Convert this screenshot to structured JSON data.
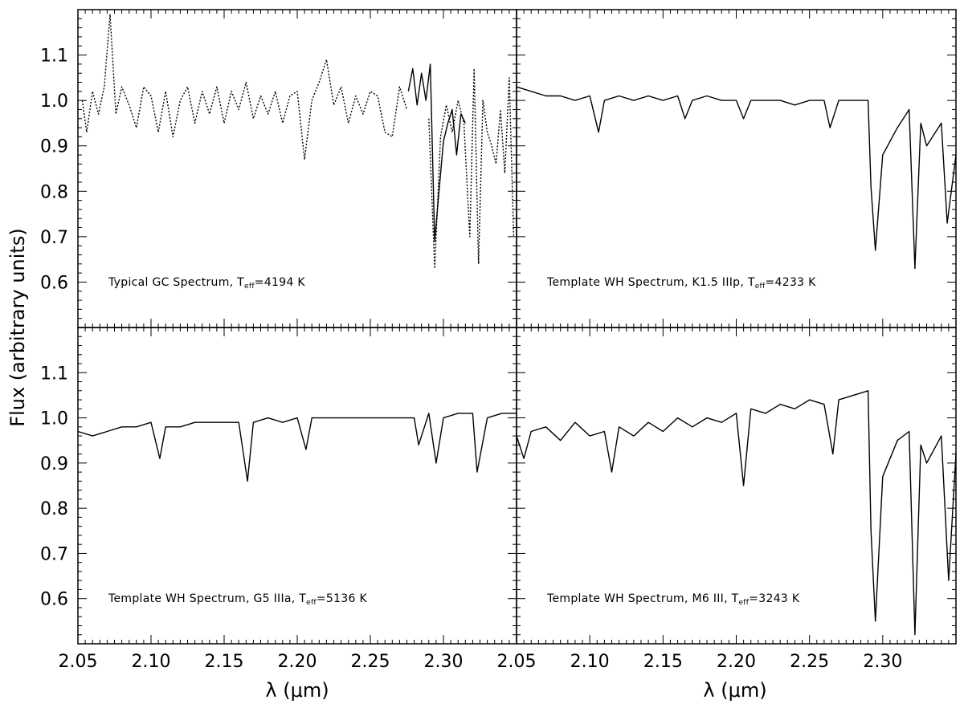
{
  "chart_data": [
    {
      "type": "line",
      "panel": "top-left",
      "label": {
        "prefix": "Typical GC Spectrum, T",
        "sub": "eff",
        "suffix": "=4194 K"
      },
      "xlim": [
        2.05,
        2.35
      ],
      "ylim": [
        0.5,
        1.2
      ],
      "x_ticks": [
        "2.05",
        "2.10",
        "2.15",
        "2.20",
        "2.25",
        "2.30"
      ],
      "y_ticks": [
        "0.6",
        "0.7",
        "0.8",
        "0.9",
        "1.0",
        "1.1"
      ],
      "series": [
        {
          "style": "dotted",
          "x": [
            2.053,
            2.056,
            2.06,
            2.064,
            2.068,
            2.072,
            2.076,
            2.08,
            2.085,
            2.09,
            2.095,
            2.1,
            2.105,
            2.11,
            2.115,
            2.12,
            2.125,
            2.13,
            2.135,
            2.14,
            2.145,
            2.15,
            2.155,
            2.16,
            2.165,
            2.17,
            2.175,
            2.18,
            2.185,
            2.19,
            2.195,
            2.2,
            2.205,
            2.21,
            2.215,
            2.22,
            2.225,
            2.23,
            2.235,
            2.24,
            2.245,
            2.25,
            2.255,
            2.26,
            2.265,
            2.27,
            2.275
          ],
          "y": [
            1.0,
            0.93,
            1.02,
            0.97,
            1.03,
            1.19,
            0.97,
            1.03,
            0.99,
            0.94,
            1.03,
            1.01,
            0.93,
            1.02,
            0.92,
            1.0,
            1.03,
            0.95,
            1.02,
            0.97,
            1.03,
            0.95,
            1.02,
            0.98,
            1.04,
            0.96,
            1.01,
            0.97,
            1.02,
            0.95,
            1.01,
            1.02,
            0.87,
            1.0,
            1.04,
            1.09,
            0.99,
            1.03,
            0.95,
            1.01,
            0.97,
            1.02,
            1.01,
            0.93,
            0.92,
            1.03,
            0.98
          ]
        },
        {
          "style": "solid",
          "x": [
            2.276,
            2.279,
            2.282,
            2.285,
            2.288,
            2.291,
            2.294,
            2.297,
            2.3,
            2.303,
            2.306,
            2.309,
            2.312,
            2.315
          ],
          "y": [
            1.02,
            1.07,
            0.99,
            1.06,
            1.0,
            1.08,
            0.69,
            0.8,
            0.91,
            0.95,
            0.98,
            0.88,
            0.97,
            0.95
          ]
        },
        {
          "style": "dotted",
          "x": [
            2.29,
            2.294,
            2.298,
            2.302,
            2.306,
            2.31,
            2.314,
            2.318,
            2.321,
            2.324,
            2.327,
            2.33,
            2.333,
            2.336,
            2.339,
            2.342,
            2.345,
            2.348
          ],
          "y": [
            0.96,
            0.63,
            0.92,
            0.99,
            0.93,
            1.0,
            0.95,
            0.7,
            1.07,
            0.64,
            1.0,
            0.93,
            0.9,
            0.86,
            0.98,
            0.84,
            1.05,
            0.7
          ]
        }
      ]
    },
    {
      "type": "line",
      "panel": "top-right",
      "label": {
        "prefix": "Template WH Spectrum, K1.5 IIIp, T",
        "sub": "eff",
        "suffix": "=4233 K"
      },
      "xlim": [
        2.05,
        2.35
      ],
      "ylim": [
        0.5,
        1.2
      ],
      "x_ticks": [
        "2.05",
        "2.10",
        "2.15",
        "2.20",
        "2.25",
        "2.30"
      ],
      "series": [
        {
          "style": "solid",
          "x": [
            2.05,
            2.06,
            2.07,
            2.08,
            2.09,
            2.1,
            2.106,
            2.11,
            2.12,
            2.13,
            2.14,
            2.15,
            2.16,
            2.165,
            2.17,
            2.18,
            2.19,
            2.2,
            2.205,
            2.21,
            2.22,
            2.23,
            2.24,
            2.25,
            2.26,
            2.264,
            2.27,
            2.28,
            2.29,
            2.292,
            2.295,
            2.3,
            2.31,
            2.318,
            2.322,
            2.326,
            2.33,
            2.34,
            2.344,
            2.35
          ],
          "y": [
            1.03,
            1.02,
            1.01,
            1.01,
            1.0,
            1.01,
            0.93,
            1.0,
            1.01,
            1.0,
            1.01,
            1.0,
            1.01,
            0.96,
            1.0,
            1.01,
            1.0,
            1.0,
            0.96,
            1.0,
            1.0,
            1.0,
            0.99,
            1.0,
            1.0,
            0.94,
            1.0,
            1.0,
            1.0,
            0.81,
            0.67,
            0.88,
            0.94,
            0.98,
            0.63,
            0.95,
            0.9,
            0.95,
            0.73,
            0.88
          ]
        }
      ]
    },
    {
      "type": "line",
      "panel": "bottom-left",
      "label": {
        "prefix": "Template WH Spectrum, G5 IIIa, T",
        "sub": "eff",
        "suffix": "=5136 K"
      },
      "xlim": [
        2.05,
        2.35
      ],
      "ylim": [
        0.5,
        1.2
      ],
      "x_ticks": [
        "2.05",
        "2.10",
        "2.15",
        "2.20",
        "2.25",
        "2.30"
      ],
      "y_ticks": [
        "0.6",
        "0.7",
        "0.8",
        "0.9",
        "1.0",
        "1.1"
      ],
      "series": [
        {
          "style": "solid",
          "x": [
            2.05,
            2.06,
            2.07,
            2.08,
            2.09,
            2.1,
            2.106,
            2.11,
            2.12,
            2.13,
            2.14,
            2.15,
            2.16,
            2.166,
            2.17,
            2.18,
            2.19,
            2.2,
            2.206,
            2.21,
            2.22,
            2.23,
            2.24,
            2.25,
            2.26,
            2.27,
            2.28,
            2.283,
            2.29,
            2.295,
            2.3,
            2.31,
            2.32,
            2.323,
            2.33,
            2.34,
            2.35
          ],
          "y": [
            0.97,
            0.96,
            0.97,
            0.98,
            0.98,
            0.99,
            0.91,
            0.98,
            0.98,
            0.99,
            0.99,
            0.99,
            0.99,
            0.86,
            0.99,
            1.0,
            0.99,
            1.0,
            0.93,
            1.0,
            1.0,
            1.0,
            1.0,
            1.0,
            1.0,
            1.0,
            1.0,
            0.94,
            1.01,
            0.9,
            1.0,
            1.01,
            1.01,
            0.88,
            1.0,
            1.01,
            1.01
          ]
        }
      ]
    },
    {
      "type": "line",
      "panel": "bottom-right",
      "label": {
        "prefix": "Template WH Spectrum, M6 III, T",
        "sub": "eff",
        "suffix": "=3243 K"
      },
      "xlim": [
        2.05,
        2.35
      ],
      "ylim": [
        0.5,
        1.2
      ],
      "x_ticks": [
        "2.05",
        "2.10",
        "2.15",
        "2.20",
        "2.25",
        "2.30"
      ],
      "series": [
        {
          "style": "solid",
          "x": [
            2.05,
            2.055,
            2.06,
            2.07,
            2.08,
            2.09,
            2.1,
            2.11,
            2.115,
            2.12,
            2.13,
            2.14,
            2.15,
            2.16,
            2.17,
            2.18,
            2.19,
            2.2,
            2.205,
            2.21,
            2.22,
            2.23,
            2.24,
            2.25,
            2.26,
            2.266,
            2.27,
            2.28,
            2.29,
            2.292,
            2.295,
            2.3,
            2.31,
            2.318,
            2.322,
            2.326,
            2.33,
            2.34,
            2.345,
            2.35
          ],
          "y": [
            0.96,
            0.91,
            0.97,
            0.98,
            0.95,
            0.99,
            0.96,
            0.97,
            0.88,
            0.98,
            0.96,
            0.99,
            0.97,
            1.0,
            0.98,
            1.0,
            0.99,
            1.01,
            0.85,
            1.02,
            1.01,
            1.03,
            1.02,
            1.04,
            1.03,
            0.92,
            1.04,
            1.05,
            1.06,
            0.75,
            0.55,
            0.87,
            0.95,
            0.97,
            0.52,
            0.94,
            0.9,
            0.96,
            0.64,
            0.92
          ]
        }
      ]
    }
  ],
  "axes": {
    "ylabel": "Flux (arbitrary units)",
    "xlabel_left": "λ (μm)",
    "xlabel_right": "λ (μm)"
  },
  "colors": {
    "line": "#000000",
    "frame": "#000000",
    "background": "#ffffff"
  }
}
